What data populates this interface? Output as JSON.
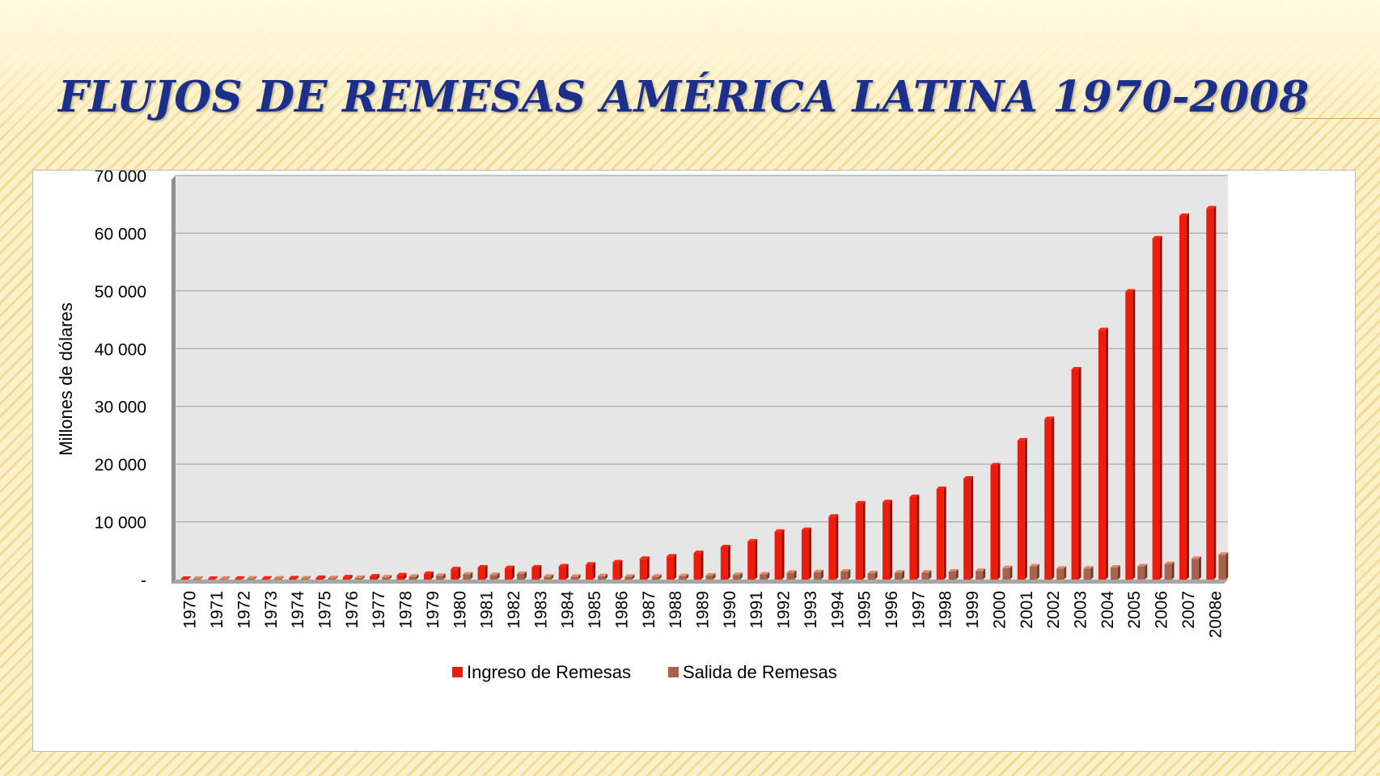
{
  "slide": {
    "title": "FLUJOS DE REMESAS AMÉRICA LATINA 1970-2008"
  },
  "colors": {
    "title": "#1c2f8a",
    "ingreso": "#ee1c0c",
    "salida": "#a7644a",
    "plot_background": "#e6e6e6",
    "gridline": "#9a9a9a"
  },
  "chart_data": {
    "type": "bar",
    "style": "3d-clustered-column",
    "title": "",
    "xlabel": "",
    "ylabel": "Millones de dólares",
    "ylim": [
      0,
      70000
    ],
    "yticks": [
      {
        "value": 0,
        "label": "-"
      },
      {
        "value": 10000,
        "label": "10 000"
      },
      {
        "value": 20000,
        "label": "20 000"
      },
      {
        "value": 30000,
        "label": "30 000"
      },
      {
        "value": 40000,
        "label": "40 000"
      },
      {
        "value": 50000,
        "label": "50 000"
      },
      {
        "value": 60000,
        "label": "60 000"
      },
      {
        "value": 70000,
        "label": "70 000"
      }
    ],
    "grid": true,
    "legend_position": "bottom",
    "categories": [
      "1970",
      "1971",
      "1972",
      "1973",
      "1974",
      "1975",
      "1976",
      "1977",
      "1978",
      "1979",
      "1980",
      "1981",
      "1982",
      "1983",
      "1984",
      "1985",
      "1986",
      "1987",
      "1988",
      "1989",
      "1990",
      "1991",
      "1992",
      "1993",
      "1994",
      "1995",
      "1996",
      "1997",
      "1998",
      "1999",
      "2000",
      "2001",
      "2002",
      "2003",
      "2004",
      "2005",
      "2006",
      "2007",
      "2008e"
    ],
    "series": [
      {
        "name": "Ingreso de Remesas",
        "color": "#ee1c0c",
        "values": [
          100,
          120,
          150,
          180,
          230,
          300,
          400,
          550,
          750,
          1000,
          1800,
          2100,
          2000,
          2100,
          2300,
          2600,
          3000,
          3600,
          4000,
          4600,
          5600,
          6600,
          8300,
          8600,
          10900,
          13200,
          13400,
          14300,
          15700,
          17500,
          19800,
          24100,
          27800,
          36400,
          43200,
          49900,
          59100,
          63000,
          64300
        ]
      },
      {
        "name": "Salida de Remesas",
        "color": "#a7644a",
        "values": [
          150,
          150,
          200,
          200,
          200,
          250,
          300,
          400,
          500,
          650,
          900,
          800,
          1000,
          500,
          500,
          600,
          500,
          500,
          600,
          700,
          800,
          900,
          1200,
          1300,
          1400,
          1100,
          1200,
          1200,
          1400,
          1500,
          2000,
          2300,
          1900,
          1900,
          2100,
          2300,
          2700,
          3600,
          4300
        ]
      }
    ]
  }
}
